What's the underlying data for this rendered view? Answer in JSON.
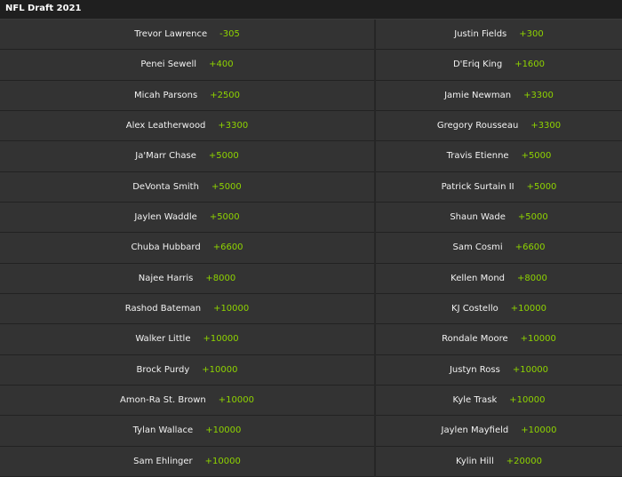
{
  "header": {
    "title": "NFL Draft 2021"
  },
  "table": {
    "rows": [
      [
        {
          "name": "Trevor Lawrence",
          "odds": "-305"
        },
        {
          "name": "Justin Fields",
          "odds": "+300"
        }
      ],
      [
        {
          "name": "Penei Sewell",
          "odds": "+400"
        },
        {
          "name": "D'Eriq King",
          "odds": "+1600"
        }
      ],
      [
        {
          "name": "Micah Parsons",
          "odds": "+2500"
        },
        {
          "name": "Jamie Newman",
          "odds": "+3300"
        }
      ],
      [
        {
          "name": "Alex Leatherwood",
          "odds": "+3300"
        },
        {
          "name": "Gregory Rousseau",
          "odds": "+3300"
        }
      ],
      [
        {
          "name": "Ja'Marr Chase",
          "odds": "+5000"
        },
        {
          "name": "Travis Etienne",
          "odds": "+5000"
        }
      ],
      [
        {
          "name": "DeVonta Smith",
          "odds": "+5000"
        },
        {
          "name": "Patrick Surtain II",
          "odds": "+5000"
        }
      ],
      [
        {
          "name": "Jaylen Waddle",
          "odds": "+5000"
        },
        {
          "name": "Shaun Wade",
          "odds": "+5000"
        }
      ],
      [
        {
          "name": "Chuba Hubbard",
          "odds": "+6600"
        },
        {
          "name": "Sam Cosmi",
          "odds": "+6600"
        }
      ],
      [
        {
          "name": "Najee Harris",
          "odds": "+8000"
        },
        {
          "name": "Kellen Mond",
          "odds": "+8000"
        }
      ],
      [
        {
          "name": "Rashod Bateman",
          "odds": "+10000"
        },
        {
          "name": "KJ Costello",
          "odds": "+10000"
        }
      ],
      [
        {
          "name": "Walker Little",
          "odds": "+10000"
        },
        {
          "name": "Rondale Moore",
          "odds": "+10000"
        }
      ],
      [
        {
          "name": "Brock Purdy",
          "odds": "+10000"
        },
        {
          "name": "Justyn Ross",
          "odds": "+10000"
        }
      ],
      [
        {
          "name": "Amon-Ra St. Brown",
          "odds": "+10000"
        },
        {
          "name": "Kyle Trask",
          "odds": "+10000"
        }
      ],
      [
        {
          "name": "Tylan Wallace",
          "odds": "+10000"
        },
        {
          "name": "Jaylen Mayfield",
          "odds": "+10000"
        }
      ],
      [
        {
          "name": "Sam Ehlinger",
          "odds": "+10000"
        },
        {
          "name": "Kylin Hill",
          "odds": "+20000"
        }
      ]
    ]
  }
}
